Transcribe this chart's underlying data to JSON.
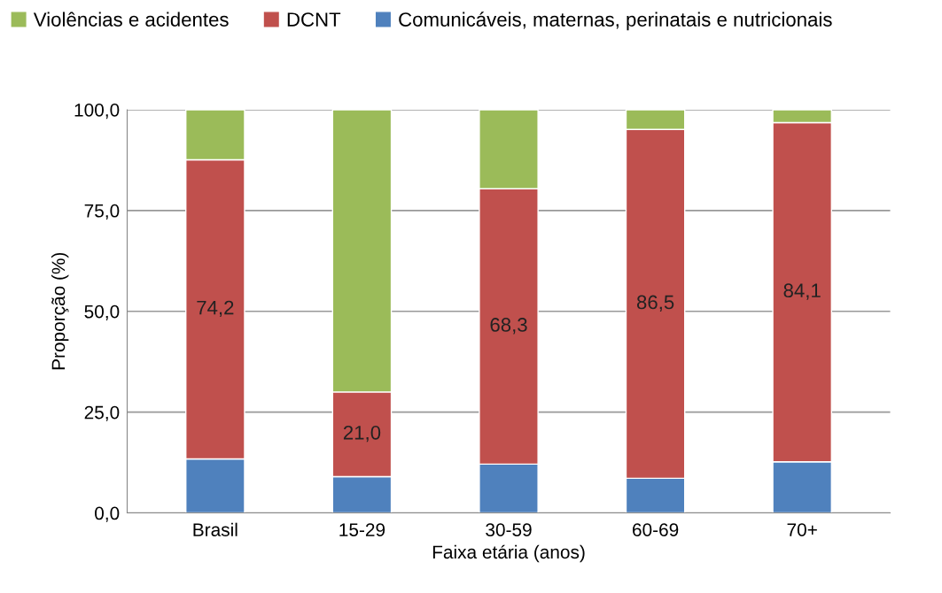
{
  "chart_data": {
    "type": "bar",
    "stacked": true,
    "xlabel": "Faixa etária (anos)",
    "ylabel": "Proporção (%)",
    "categories": [
      "Brasil",
      "15-29",
      "30-59",
      "60-69",
      "70+"
    ],
    "series": [
      {
        "name": "Comunicáveis, maternas, perinatais e nutricionais",
        "color": "#4f81bd",
        "values": [
          13.4,
          9.0,
          12.1,
          8.6,
          12.7
        ]
      },
      {
        "name": "DCNT",
        "color": "#c0504d",
        "values": [
          74.2,
          21.0,
          68.3,
          86.5,
          84.1
        ],
        "value_labels": [
          "74,2",
          "21,0",
          "68,3",
          "86,5",
          "84,1"
        ]
      },
      {
        "name": "Violências e acidentes",
        "color": "#9bbb59",
        "values": [
          12.4,
          70.0,
          19.6,
          4.9,
          3.2
        ]
      }
    ],
    "ylim": [
      0,
      100
    ],
    "yticks": [
      {
        "value": 0,
        "label": "0,0"
      },
      {
        "value": 25,
        "label": "25,0"
      },
      {
        "value": 50,
        "label": "50,0"
      },
      {
        "value": 75,
        "label": "75,0"
      },
      {
        "value": 100,
        "label": "100,0"
      }
    ],
    "grid": "y",
    "legend": "top left"
  }
}
